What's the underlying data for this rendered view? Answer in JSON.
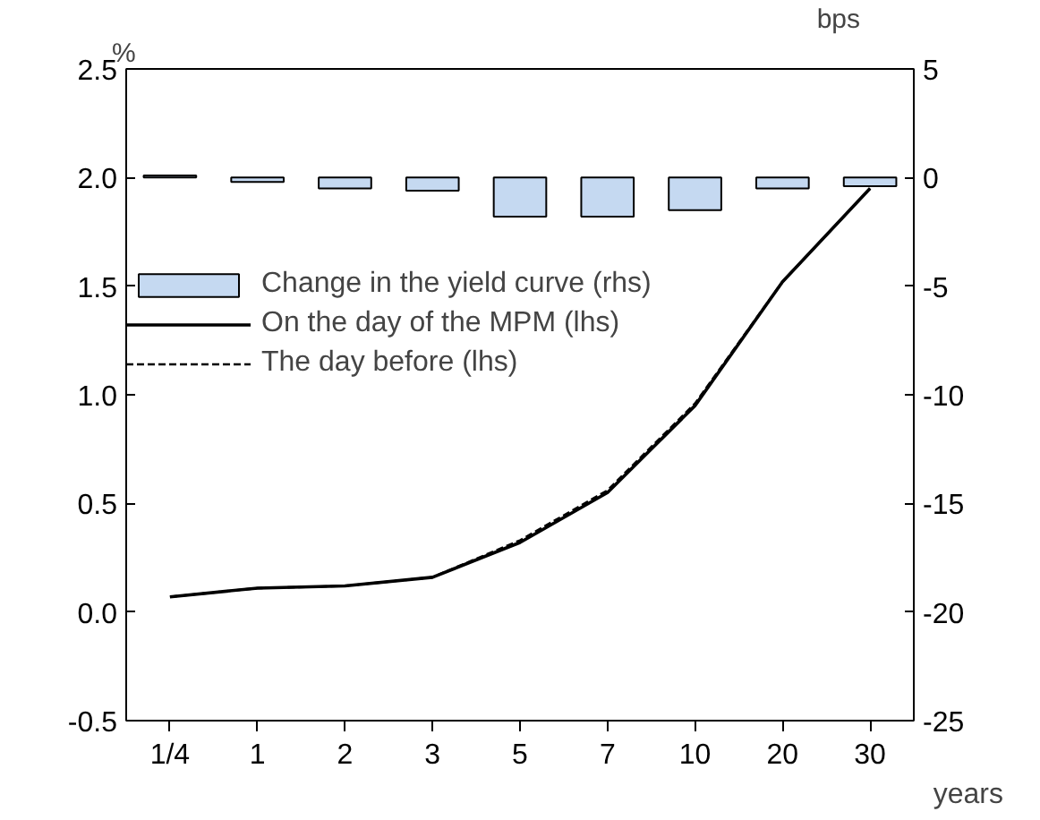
{
  "chart_data": {
    "type": "line",
    "xlabel": "years",
    "ylabel": "%",
    "y2label": "bps",
    "categories": [
      "1/4",
      "1",
      "2",
      "3",
      "5",
      "7",
      "10",
      "20",
      "30"
    ],
    "ylim": [
      -0.5,
      2.5
    ],
    "yticks": [
      -0.5,
      {
        "value": 0,
        "label": "0.0"
      },
      0.5,
      {
        "value": 1,
        "label": "1.0"
      },
      1.5,
      {
        "value": 2,
        "label": "2.0"
      },
      2.5
    ],
    "y2lim": [
      -25,
      5
    ],
    "y2ticks": [
      -25,
      -20,
      -15,
      -10,
      -5,
      0,
      5
    ],
    "grid": false,
    "legend": "left",
    "series": [
      {
        "name": "Change in the yield curve (rhs)",
        "type": "bar",
        "axis": "y2",
        "color": "#c5d9f1",
        "values": [
          0.1,
          -0.2,
          -0.5,
          -0.6,
          -1.8,
          -1.8,
          -1.5,
          -0.5,
          -0.4
        ]
      },
      {
        "name": "On the day of the MPM (lhs)",
        "color": "#000000",
        "line_style": "solid",
        "values": [
          0.07,
          0.11,
          0.12,
          0.16,
          0.32,
          0.55,
          0.95,
          1.52,
          1.95
        ]
      },
      {
        "name": "The day before (lhs)",
        "color": "#000000",
        "line_style": "dashed",
        "values": [
          0.07,
          0.11,
          0.12,
          0.16,
          0.33,
          0.56,
          0.96,
          1.52,
          1.95
        ]
      }
    ]
  }
}
